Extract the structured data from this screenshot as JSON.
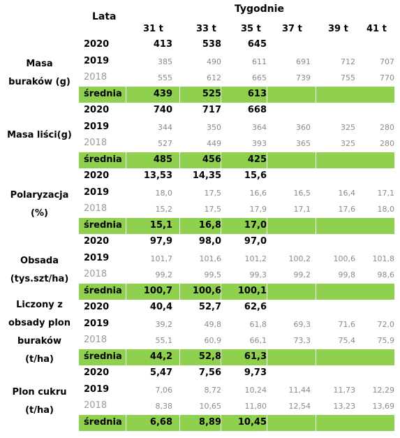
{
  "header": {
    "lata": "Lata",
    "tygodnie": "Tygodnie",
    "weeks": [
      "31 t",
      "33 t",
      "35 t",
      "37 t",
      "39 t",
      "41 t"
    ]
  },
  "colors": {
    "average_band": "#8fd14f",
    "prev_year_text": "#8a8a8a"
  },
  "groups": [
    {
      "label_lines": [
        "Masa",
        "buraków (g)"
      ],
      "rows": [
        {
          "year": "2020",
          "values": [
            "413",
            "538",
            "645",
            "",
            "",
            ""
          ]
        },
        {
          "year": "2019",
          "values": [
            "385",
            "490",
            "611",
            "691",
            "712",
            "707"
          ]
        },
        {
          "year": "2018",
          "values": [
            "555",
            "612",
            "665",
            "739",
            "755",
            "770"
          ]
        },
        {
          "year": "średnia",
          "values": [
            "439",
            "525",
            "613",
            "",
            "",
            ""
          ]
        }
      ]
    },
    {
      "label_lines": [
        "Masa liści(g)"
      ],
      "rows": [
        {
          "year": "2020",
          "values": [
            "740",
            "717",
            "668",
            "",
            "",
            ""
          ]
        },
        {
          "year": "2019",
          "values": [
            "344",
            "350",
            "364",
            "360",
            "325",
            "280"
          ]
        },
        {
          "year": "2018",
          "values": [
            "527",
            "449",
            "393",
            "365",
            "325",
            "280"
          ]
        },
        {
          "year": "średnia",
          "values": [
            "485",
            "456",
            "425",
            "",
            "",
            ""
          ]
        }
      ]
    },
    {
      "label_lines": [
        "Polaryzacja",
        "(%)"
      ],
      "rows": [
        {
          "year": "2020",
          "values": [
            "13,53",
            "14,35",
            "15,6",
            "",
            "",
            ""
          ]
        },
        {
          "year": "2019",
          "values": [
            "18,0",
            "17,5",
            "16,6",
            "16,5",
            "16,4",
            "17,1"
          ]
        },
        {
          "year": "2018",
          "values": [
            "15,2",
            "17,5",
            "17,9",
            "17,1",
            "17,6",
            "18,0"
          ]
        },
        {
          "year": "średnia",
          "values": [
            "15,1",
            "16,8",
            "17,0",
            "",
            "",
            ""
          ]
        }
      ]
    },
    {
      "label_lines": [
        "Obsada",
        "(tys.szt/ha)"
      ],
      "rows": [
        {
          "year": "2020",
          "values": [
            "97,9",
            "98,0",
            "97,0",
            "",
            "",
            ""
          ]
        },
        {
          "year": "2019",
          "values": [
            "101,7",
            "101,6",
            "101,2",
            "100,2",
            "100,6",
            "101,8"
          ]
        },
        {
          "year": "2018",
          "values": [
            "99,2",
            "99,5",
            "99,3",
            "99,2",
            "99,8",
            "98,6"
          ]
        },
        {
          "year": "średnia",
          "values": [
            "100,7",
            "100,6",
            "100,1",
            "",
            "",
            ""
          ]
        }
      ]
    },
    {
      "label_lines": [
        "Liczony z",
        "obsady plon",
        "buraków",
        "(t/ha)"
      ],
      "rows": [
        {
          "year": "2020",
          "values": [
            "40,4",
            "52,7",
            "62,6",
            "",
            "",
            ""
          ]
        },
        {
          "year": "2019",
          "values": [
            "39,2",
            "49,8",
            "61,8",
            "69,3",
            "71,6",
            "72,0"
          ]
        },
        {
          "year": "2018",
          "values": [
            "55,1",
            "60,9",
            "66,1",
            "73,3",
            "75,4",
            "75,9"
          ]
        },
        {
          "year": "średnia",
          "values": [
            "44,2",
            "52,8",
            "61,3",
            "",
            "",
            ""
          ]
        }
      ]
    },
    {
      "label_lines": [
        "Plon cukru",
        "(t/ha)"
      ],
      "rows": [
        {
          "year": "2020",
          "values": [
            "5,47",
            "7,56",
            "9,73",
            "",
            "",
            ""
          ]
        },
        {
          "year": "2019",
          "values": [
            "7,06",
            "8,72",
            "10,24",
            "11,44",
            "11,73",
            "12,29"
          ]
        },
        {
          "year": "2018",
          "values": [
            "8,38",
            "10,65",
            "11,80",
            "12,54",
            "13,23",
            "13,69"
          ]
        },
        {
          "year": "średnia",
          "values": [
            "6,68",
            "8,89",
            "10,45",
            "",
            "",
            ""
          ]
        }
      ]
    }
  ]
}
